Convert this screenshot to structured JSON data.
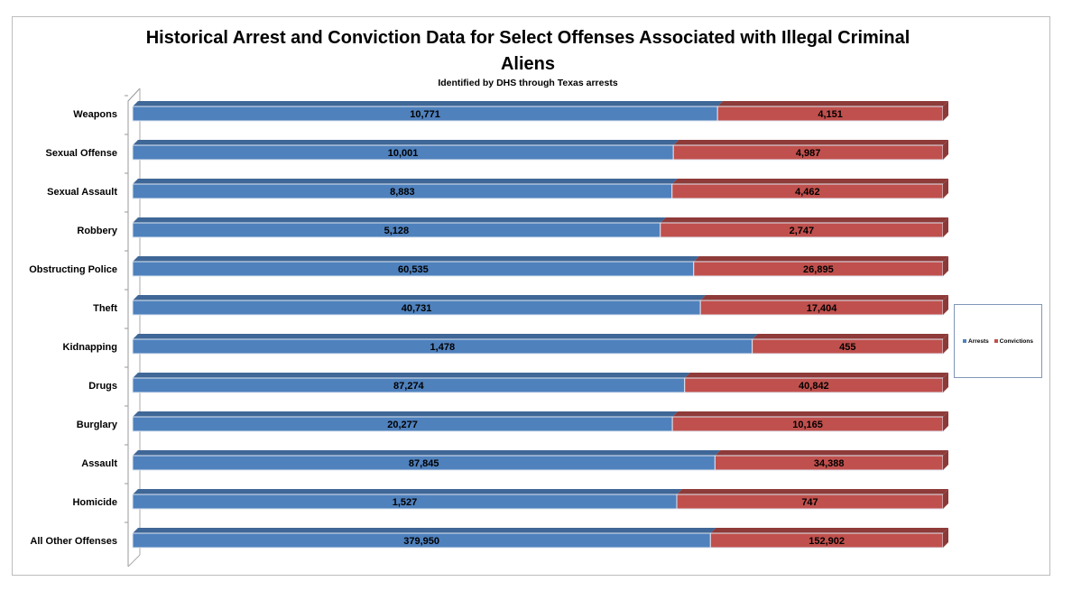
{
  "chart_data": {
    "type": "bar",
    "stacked": "100%",
    "orientation": "horizontal",
    "title": "Historical Arrest and Conviction Data for Select Offenses Associated with Illegal Criminal Aliens",
    "subtitle": "Identified by DHS through Texas arrests",
    "categories": [
      "Weapons",
      "Sexual Offense",
      "Sexual Assault",
      "Robbery",
      "Obstructing Police",
      "Theft",
      "Kidnapping",
      "Drugs",
      "Burglary",
      "Assault",
      "Homicide",
      "All Other Offenses"
    ],
    "series": [
      {
        "name": "Arrests",
        "color": "#4f81bd",
        "values": [
          10771,
          10001,
          8883,
          5128,
          60535,
          40731,
          1478,
          87274,
          20277,
          87845,
          1527,
          379950
        ],
        "labels": [
          "10,771",
          "10,001",
          "8,883",
          "5,128",
          "60,535",
          "40,731",
          "1,478",
          "87,274",
          "20,277",
          "87,845",
          "1,527",
          "379,950"
        ]
      },
      {
        "name": "Convictions",
        "color": "#c0504d",
        "values": [
          4151,
          4987,
          4462,
          2747,
          26895,
          17404,
          455,
          40842,
          10165,
          34388,
          747,
          152902
        ],
        "labels": [
          "4,151",
          "4,987",
          "4,462",
          "2,747",
          "26,895",
          "17,404",
          "455",
          "40,842",
          "10,165",
          "34,388",
          "747",
          "152,902"
        ]
      }
    ],
    "legend_position": "right",
    "grid": false,
    "three_d": true
  }
}
